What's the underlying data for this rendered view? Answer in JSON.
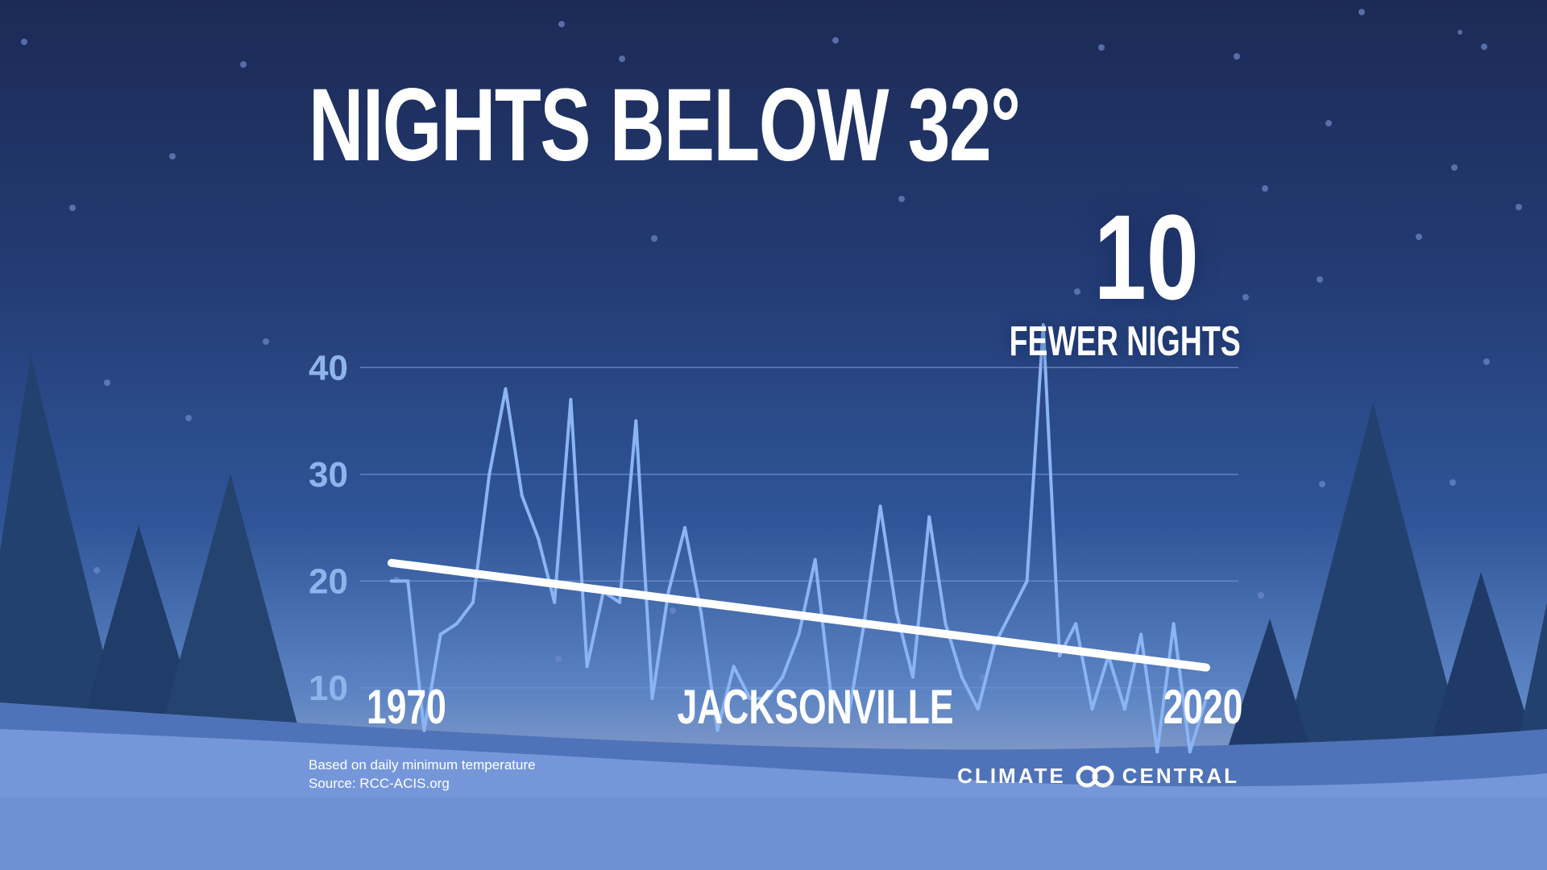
{
  "title": "NIGHTS BELOW 32°",
  "callout": {
    "number": "10",
    "label": "FEWER NIGHTS"
  },
  "location": "JACKSONVILLE",
  "footnote": {
    "line1": "Based on daily minimum temperature",
    "line2": "Source: RCC-ACIS.org"
  },
  "logo": {
    "left": "CLIMATE",
    "right": "CENTRAL",
    "mark": "two-circles-logo-icon"
  },
  "colors": {
    "series_line": "#8ab4f4",
    "trend_line": "#ffffff",
    "tick_label": "#8fb4ec",
    "gridline": "#6f8fcf",
    "background_top": "#1c2a55",
    "background_bottom": "#7f98cf"
  },
  "chart_data": {
    "type": "line",
    "title": "NIGHTS BELOW 32°",
    "xlabel": "",
    "ylabel": "",
    "x_tick_labels": [
      "1970",
      "2020"
    ],
    "y_ticks": [
      10,
      20,
      30,
      40
    ],
    "xlim": [
      1970,
      2020
    ],
    "ylim": [
      0,
      45
    ],
    "grid": true,
    "legend": "none",
    "series": [
      {
        "x": [
          1970,
          1971,
          1972,
          1973,
          1974,
          1975,
          1976,
          1977,
          1978,
          1979,
          1980,
          1981,
          1982,
          1983,
          1984,
          1985,
          1986,
          1987,
          1988,
          1989,
          1990,
          1991,
          1992,
          1993,
          1994,
          1995,
          1996,
          1997,
          1998,
          1999,
          2000,
          2001,
          2002,
          2003,
          2004,
          2005,
          2006,
          2007,
          2008,
          2009,
          2010,
          2011,
          2012,
          2013,
          2014,
          2015,
          2016,
          2017,
          2018,
          2019,
          2020
        ],
        "values": [
          20,
          20,
          6,
          15,
          16,
          18,
          30,
          38,
          28,
          24,
          18,
          37,
          12,
          19,
          18,
          35,
          9,
          19,
          25,
          17,
          6,
          12,
          9,
          9,
          11,
          15,
          22,
          9,
          7,
          16,
          27,
          17,
          11,
          26,
          16,
          11,
          8,
          14,
          17,
          20,
          44,
          13,
          16,
          8,
          13,
          8,
          15,
          4,
          16,
          4,
          9
        ]
      }
    ],
    "trend": {
      "x": [
        1970,
        2020
      ],
      "values": [
        21.7,
        11.9
      ]
    }
  }
}
